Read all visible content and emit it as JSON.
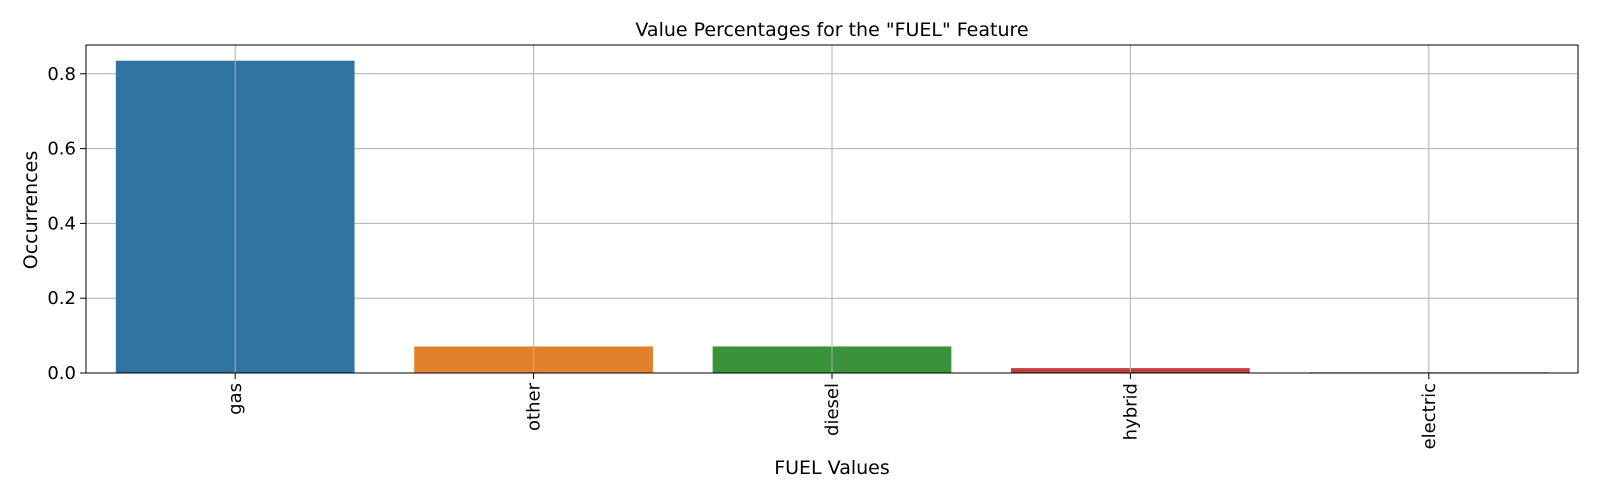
{
  "chart_data": {
    "type": "bar",
    "title": "Value Percentages for the \"FUEL\" Feature",
    "xlabel": "FUEL Values",
    "ylabel": "Occurrences",
    "categories": [
      "gas",
      "other",
      "diesel",
      "hybrid",
      "electric"
    ],
    "values": [
      0.835,
      0.071,
      0.071,
      0.013,
      0.002
    ],
    "colors": [
      "#3274a1",
      "#e1812c",
      "#3a923a",
      "#c03d3e",
      "#9372b2"
    ],
    "ylim": [
      0,
      0.877
    ],
    "yticks": [
      0.0,
      0.2,
      0.4,
      0.6,
      0.8
    ],
    "ytick_labels": [
      "0.0",
      "0.2",
      "0.4",
      "0.6",
      "0.8"
    ],
    "grid": true,
    "legend": "none",
    "xtick_rotation": "vertical"
  }
}
